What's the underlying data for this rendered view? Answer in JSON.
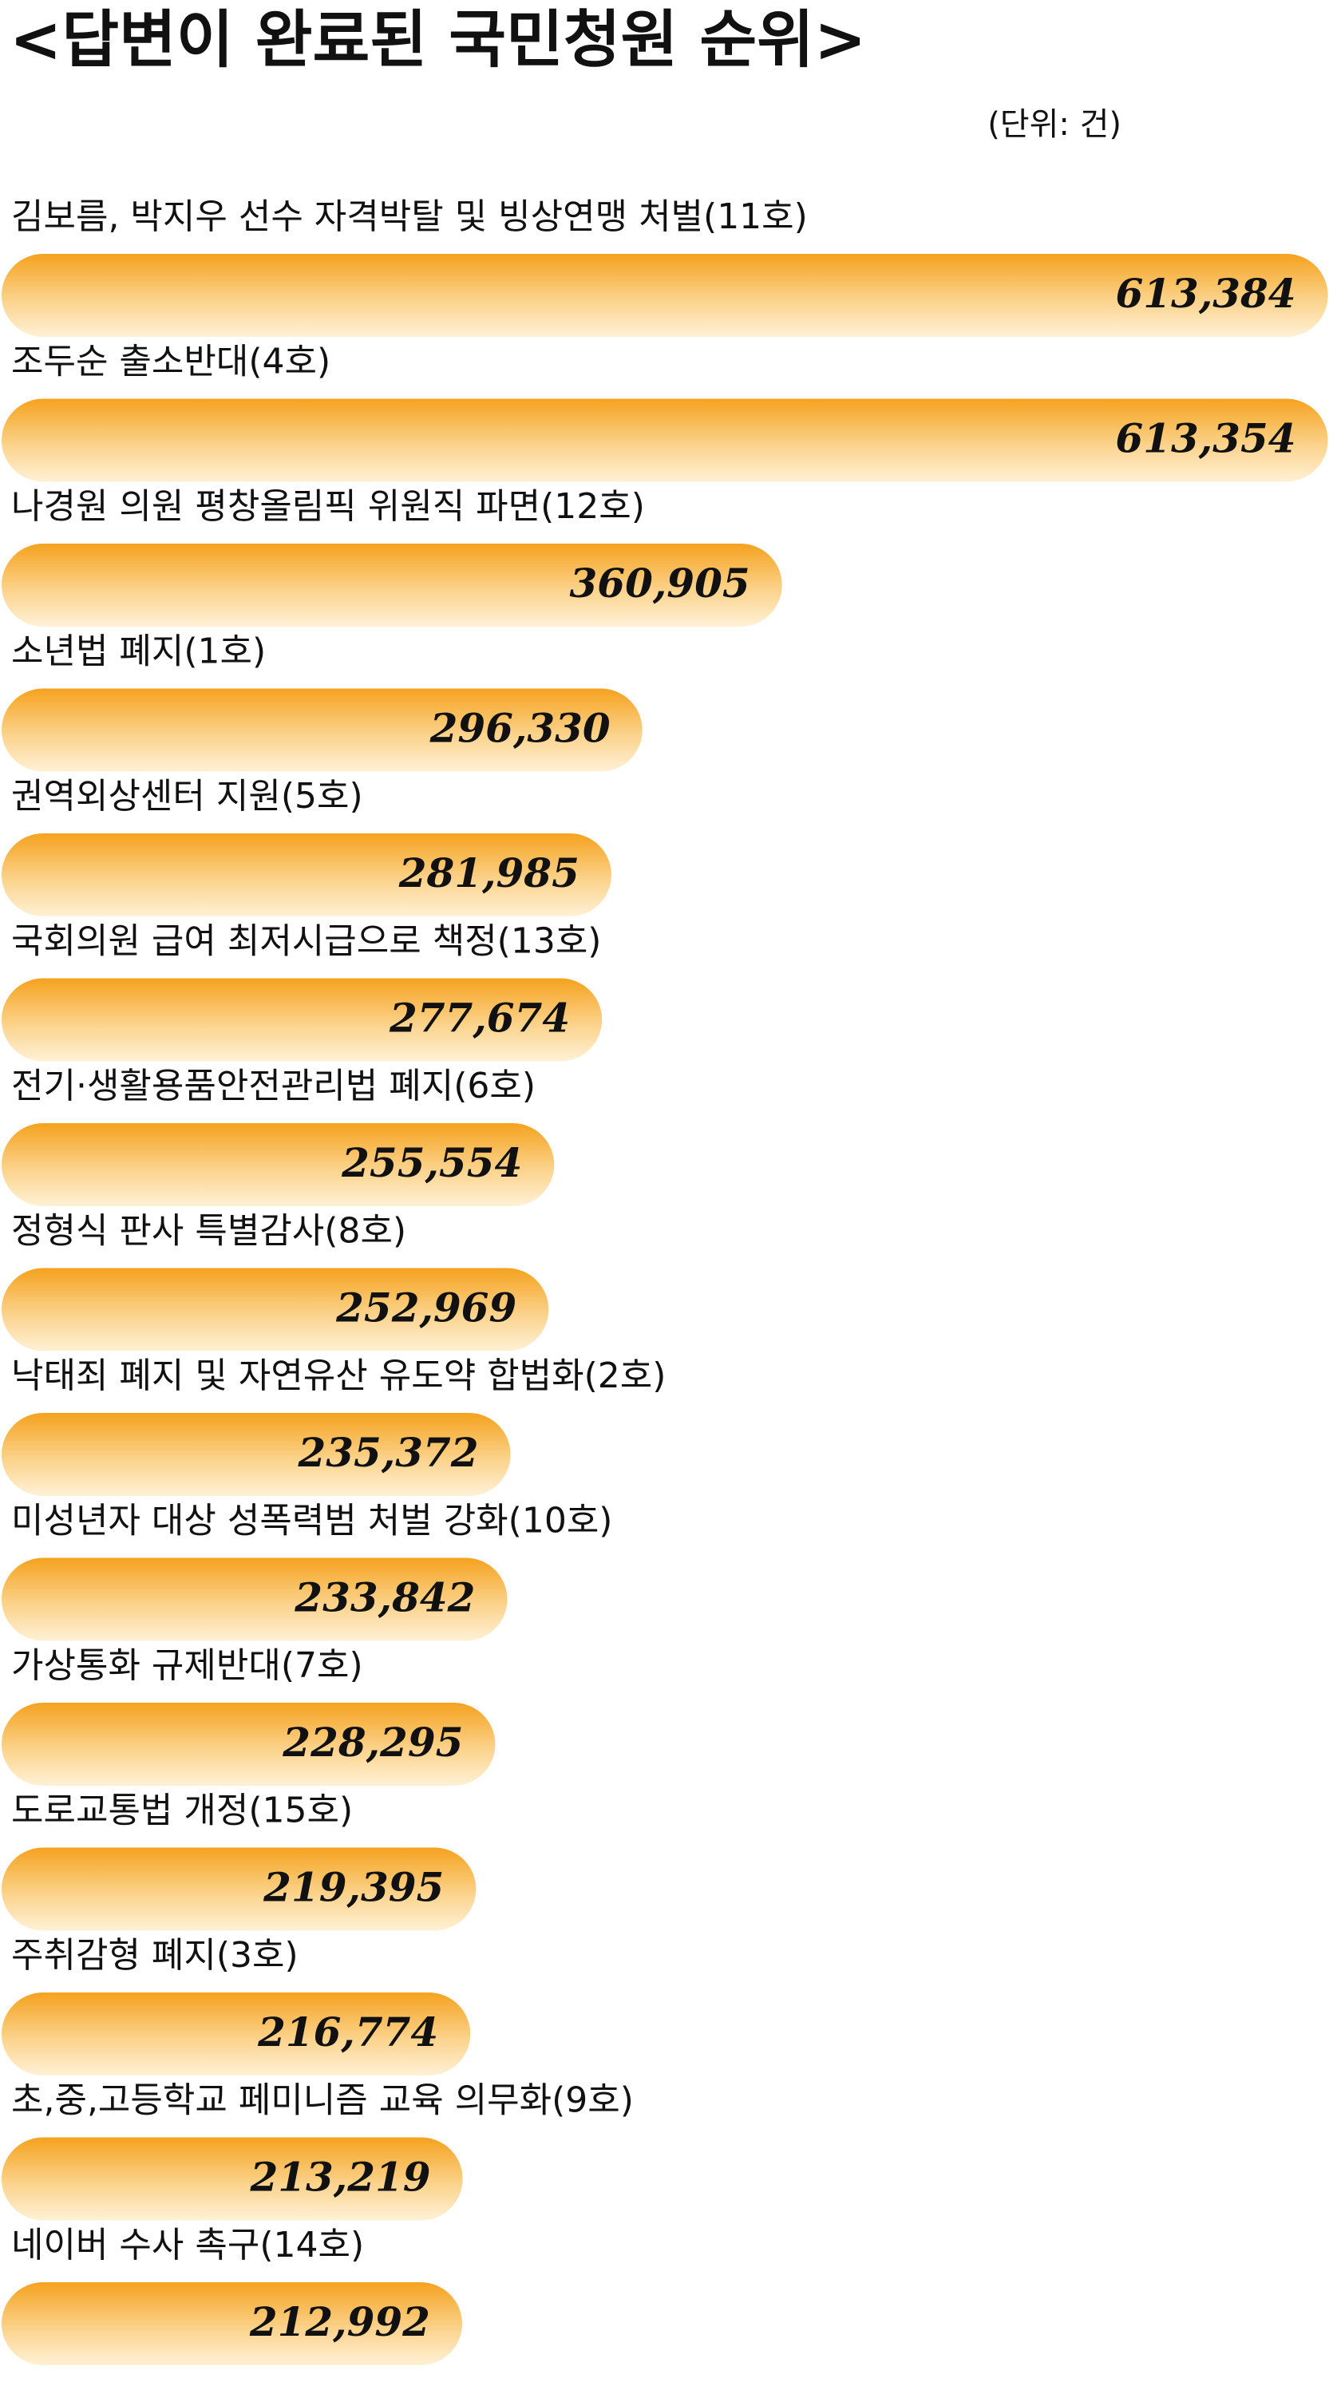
{
  "chart_data": {
    "type": "bar",
    "orientation": "horizontal",
    "title": "<답변이 완료된 국민청원 순위>",
    "unit": "(단위: 건)",
    "categories": [
      "김보름, 박지우 선수 자격박탈 및 빙상연맹 처벌(11호)",
      "조두순 출소반대(4호)",
      "나경원 의원 평창올림픽 위원직 파면(12호)",
      "소년법 폐지(1호)",
      "권역외상센터 지원(5호)",
      "국회의원 급여 최저시급으로 책정(13호)",
      "전기·생활용품안전관리법 폐지(6호)",
      "정형식 판사 특별감사(8호)",
      "낙태죄 폐지 및 자연유산 유도약 합법화(2호)",
      "미성년자 대상 성폭력범 처벌 강화(10호)",
      "가상통화 규제반대(7호)",
      "도로교통법 개정(15호)",
      "주취감형 폐지(3호)",
      "초,중,고등학교 페미니즘 교육 의무화(9호)",
      "네이버 수사 촉구(14호)"
    ],
    "values": [
      613384,
      613354,
      360905,
      296330,
      281985,
      277674,
      255554,
      252969,
      235372,
      233842,
      228295,
      219395,
      216774,
      213219,
      212992
    ],
    "value_labels": [
      "613,384",
      "613,354",
      "360,905",
      "296,330",
      "281,985",
      "277,674",
      "255,554",
      "252,969",
      "235,372",
      "233,842",
      "228,295",
      "219,395",
      "216,774",
      "213,219",
      "212,992"
    ],
    "color": "#f5a21e",
    "xlim": [
      0,
      615000
    ]
  }
}
